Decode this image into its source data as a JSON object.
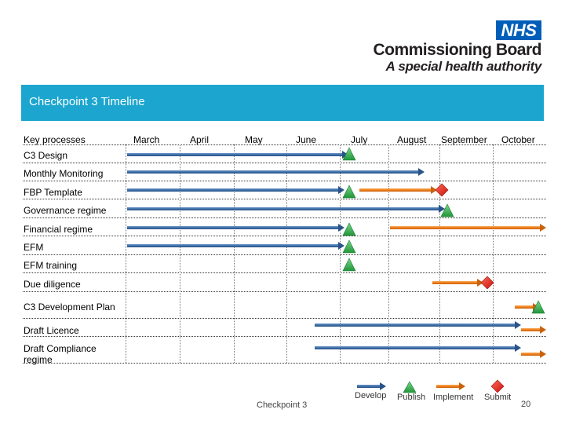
{
  "logo": {
    "nhs": "NHS",
    "line1": "Commissioning Board",
    "line2": "A special health authority"
  },
  "banner": {
    "title": "Checkpoint 3 Timeline"
  },
  "header": {
    "key_processes": "Key processes",
    "months": [
      "March",
      "April",
      "May",
      "June",
      "July",
      "August",
      "September",
      "October"
    ]
  },
  "rows": [
    {
      "label": "C3 Design"
    },
    {
      "label": "Monthly Monitoring"
    },
    {
      "label": "FBP Template"
    },
    {
      "label": "Governance regime"
    },
    {
      "label": "Financial regime"
    },
    {
      "label": "EFM"
    },
    {
      "label": "EFM training"
    },
    {
      "label": "Due diligence"
    },
    {
      "label": "C3 Development Plan"
    },
    {
      "label": "Draft Licence"
    },
    {
      "label_line1": "Draft Compliance",
      "label_line2": "regime"
    }
  ],
  "legend": {
    "develop": "Develop",
    "publish": "Publish",
    "implement": "Implement",
    "submit": "Submit"
  },
  "footer": {
    "text": "Checkpoint 3",
    "page": "20"
  },
  "colors": {
    "banner": "#1ba5cf",
    "develop": "#3e6fa8",
    "implement": "#f07d1a",
    "publish": "#2fb34a",
    "submit": "#e8251e",
    "nhs_blue": "#005eb8"
  }
}
